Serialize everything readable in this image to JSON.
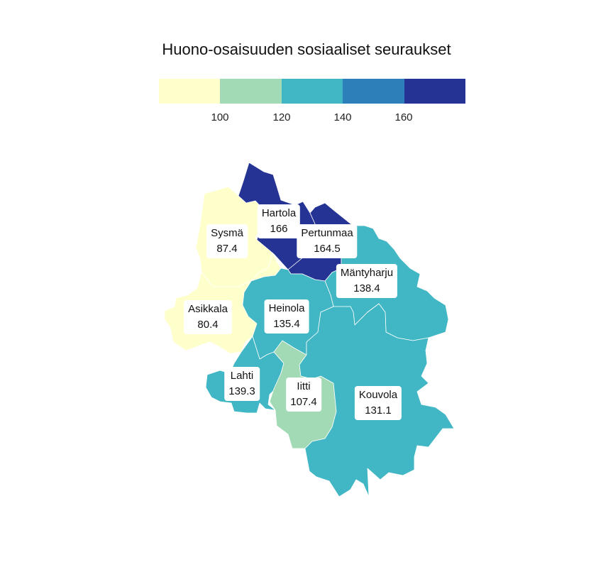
{
  "title": "Huono-osaisuuden sosiaaliset seuraukset",
  "legend": {
    "colors": [
      "#ffffcc",
      "#a1dab4",
      "#41b6c4",
      "#2c7fb8",
      "#253494"
    ],
    "ticks": [
      "100",
      "120",
      "140",
      "160"
    ]
  },
  "regions": [
    {
      "name": "Sysmä",
      "value": "87.4",
      "color": "#ffffcc"
    },
    {
      "name": "Hartola",
      "value": "166",
      "color": "#253494"
    },
    {
      "name": "Pertunmaa",
      "value": "164.5",
      "color": "#253494"
    },
    {
      "name": "Mäntyharju",
      "value": "138.4",
      "color": "#41b6c4"
    },
    {
      "name": "Asikkala",
      "value": "80.4",
      "color": "#ffffcc"
    },
    {
      "name": "Heinola",
      "value": "135.4",
      "color": "#41b6c4"
    },
    {
      "name": "Lahti",
      "value": "139.3",
      "color": "#41b6c4"
    },
    {
      "name": "Iitti",
      "value": "107.4",
      "color": "#a1dab4"
    },
    {
      "name": "Kouvola",
      "value": "131.1",
      "color": "#41b6c4"
    }
  ]
}
